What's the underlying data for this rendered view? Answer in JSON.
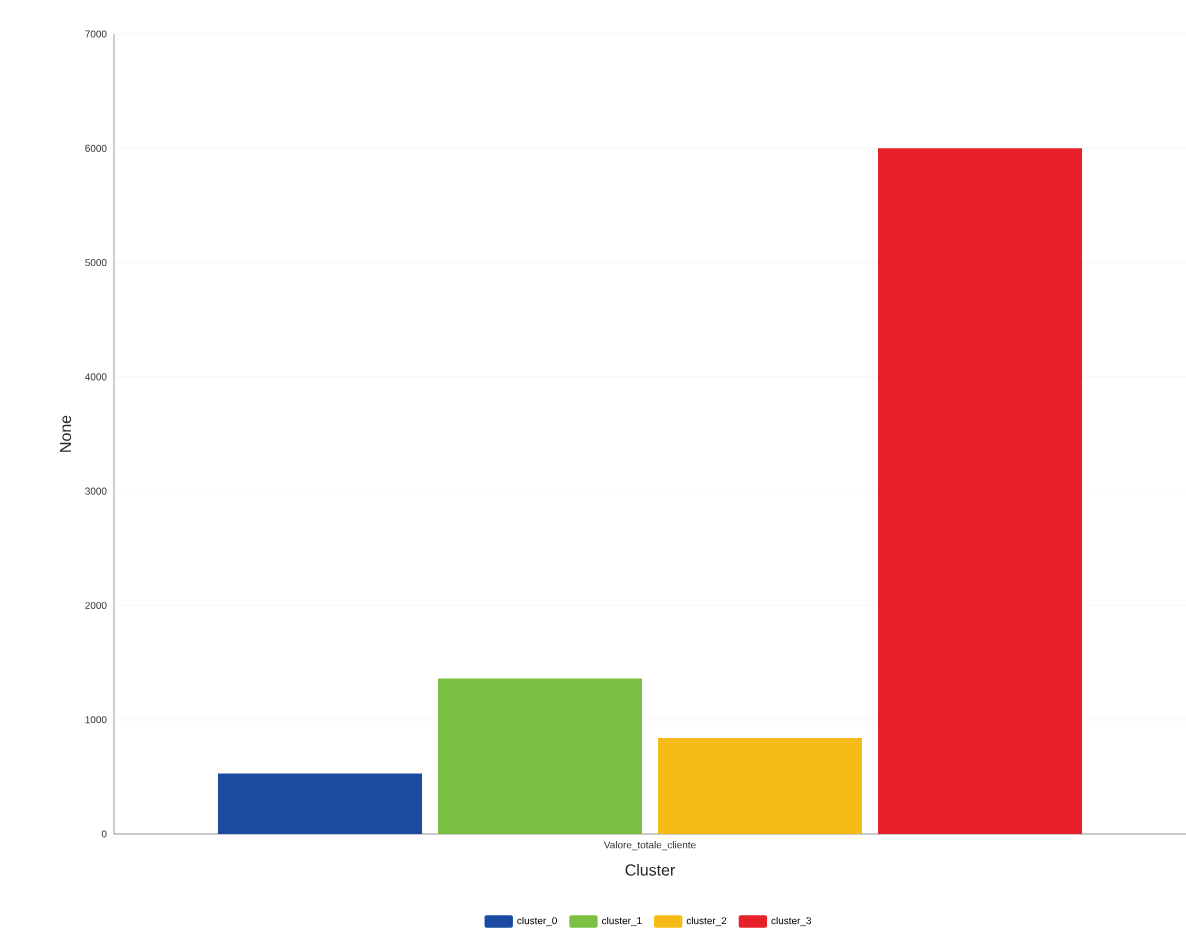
{
  "chart_data": {
    "type": "bar",
    "xlabel": "Cluster",
    "ylabel": "None",
    "categories": [
      "Valore_totale_cliente"
    ],
    "series": [
      {
        "name": "cluster_0",
        "color": "#1a4ba0",
        "values": [
          530
        ]
      },
      {
        "name": "cluster_1",
        "color": "#7bc043",
        "values": [
          1360
        ]
      },
      {
        "name": "cluster_2",
        "color": "#f7bb17",
        "values": [
          840
        ]
      },
      {
        "name": "cluster_3",
        "color": "#e8202a",
        "values": [
          6000
        ]
      }
    ],
    "ylim": [
      0,
      7000
    ],
    "yticks": [
      0,
      1000,
      2000,
      3000,
      4000,
      5000,
      6000,
      7000
    ],
    "grid": "y",
    "legend": "bottom"
  }
}
